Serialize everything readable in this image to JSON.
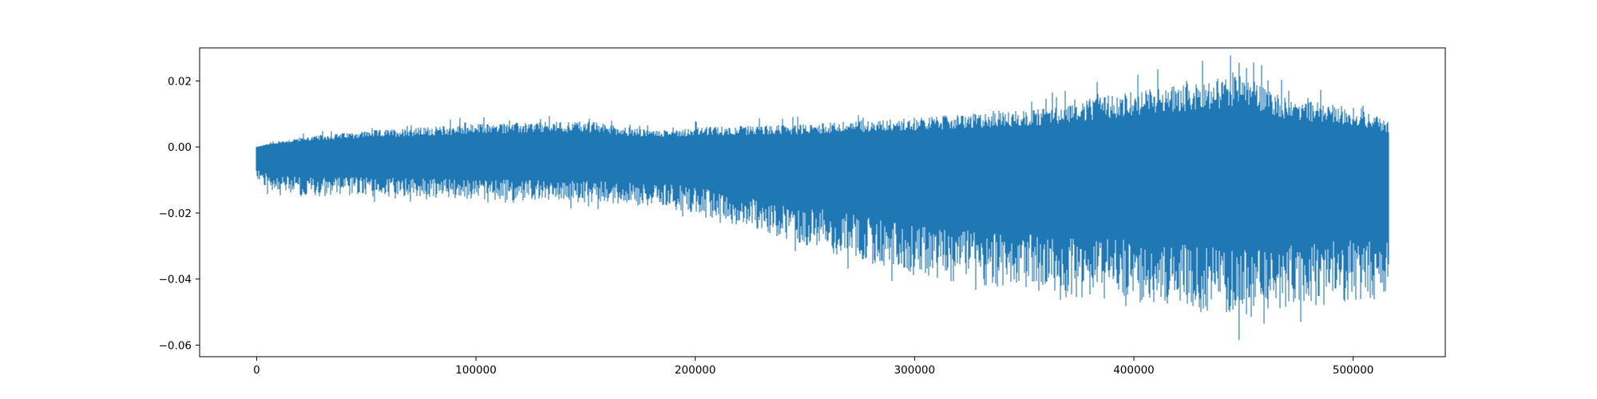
{
  "chart_data": {
    "type": "line",
    "title": "",
    "xlabel": "",
    "ylabel": "",
    "grid": false,
    "legend": "none",
    "xlim": [
      -26000,
      542000
    ],
    "ylim": [
      -0.0635,
      0.03
    ],
    "x_ticks": [
      0,
      100000,
      200000,
      300000,
      400000,
      500000
    ],
    "x_tick_labels": [
      "0",
      "100000",
      "200000",
      "300000",
      "400000",
      "500000"
    ],
    "y_ticks": [
      0.02,
      0.0,
      -0.02,
      -0.04,
      -0.06
    ],
    "y_tick_labels": [
      "0.02",
      "0.00",
      "−0.02",
      "−0.04",
      "−0.06"
    ],
    "series": [
      {
        "color": "#1f77b4",
        "x_range": [
          0,
          516000
        ],
        "envelope": {
          "x": [
            0,
            5000,
            20000,
            50000,
            100000,
            150000,
            180000,
            200000,
            250000,
            300000,
            350000,
            400000,
            450000,
            470000,
            500000,
            516000
          ],
          "upper": [
            0.0,
            0.001,
            0.003,
            0.005,
            0.007,
            0.008,
            0.005,
            0.006,
            0.007,
            0.009,
            0.011,
            0.017,
            0.022,
            0.015,
            0.012,
            0.008
          ],
          "lower": [
            -0.01,
            -0.013,
            -0.015,
            -0.015,
            -0.016,
            -0.017,
            -0.018,
            -0.02,
            -0.03,
            -0.039,
            -0.044,
            -0.047,
            -0.052,
            -0.049,
            -0.047,
            -0.046
          ]
        },
        "peaks": {
          "max": {
            "x": 448000,
            "y": 0.0255
          },
          "min": {
            "x": 448000,
            "y": -0.0585
          }
        }
      }
    ]
  }
}
